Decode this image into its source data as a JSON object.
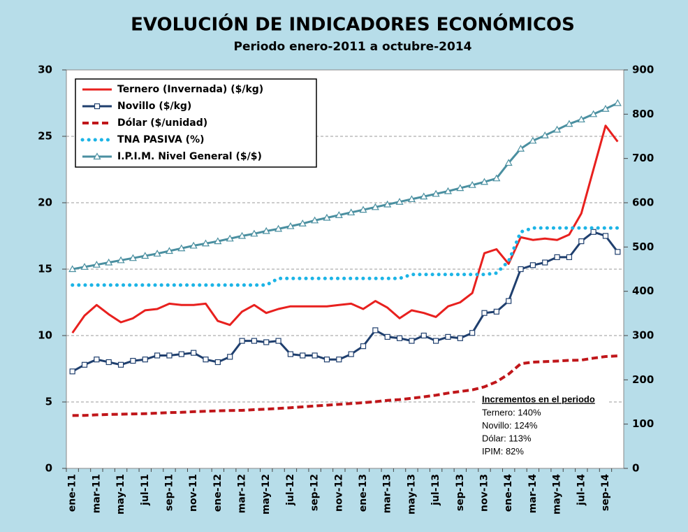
{
  "chart_data": {
    "type": "line",
    "title": "EVOLUCIÓN DE INDICADORES ECONÓMICOS",
    "subtitle": "Periodo enero-2011 a octubre-2014",
    "categories": [
      "ene-11",
      null,
      "mar-11",
      null,
      "may-11",
      null,
      "jul-11",
      null,
      "sep-11",
      null,
      "nov-11",
      null,
      "ene-12",
      null,
      "mar-12",
      null,
      "may-12",
      null,
      "jul-12",
      null,
      "sep-12",
      null,
      "nov-12",
      null,
      "ene-13",
      null,
      "mar-13",
      null,
      "may-13",
      null,
      "jul-13",
      null,
      "sep-13",
      null,
      "nov-13",
      null,
      "ene-14",
      null,
      "mar-14",
      null,
      "may-14",
      null,
      "jul-14",
      null,
      "sep-14",
      null
    ],
    "series": [
      {
        "name": "Ternero (Invernada) ($/kg)",
        "color": "#e8201e",
        "line_style": "solid",
        "marker": "none",
        "values": [
          10.2,
          11.5,
          12.3,
          11.6,
          11.0,
          11.3,
          11.9,
          12.0,
          12.4,
          12.3,
          12.3,
          12.4,
          11.1,
          10.8,
          11.8,
          12.3,
          11.7,
          12.0,
          12.2,
          12.2,
          12.2,
          12.2,
          12.3,
          12.4,
          12.0,
          12.6,
          12.1,
          11.3,
          11.9,
          11.7,
          11.4,
          12.2,
          12.5,
          13.2,
          16.2,
          16.5,
          15.4,
          17.4,
          17.2,
          17.3,
          17.2,
          17.6,
          19.2,
          22.5,
          25.8,
          24.6
        ]
      },
      {
        "name": "Novillo ($/kg)",
        "color": "#1f3f6e",
        "line_style": "solid",
        "marker": "square",
        "values": [
          7.3,
          7.8,
          8.2,
          8.0,
          7.8,
          8.1,
          8.2,
          8.5,
          8.5,
          8.6,
          8.7,
          8.2,
          8.0,
          8.4,
          9.6,
          9.6,
          9.5,
          9.6,
          8.6,
          8.5,
          8.5,
          8.2,
          8.2,
          8.6,
          9.2,
          10.4,
          9.9,
          9.8,
          9.6,
          10.0,
          9.6,
          9.9,
          9.8,
          10.2,
          11.7,
          11.8,
          12.6,
          15.0,
          15.3,
          15.5,
          15.9,
          15.9,
          17.1,
          17.8,
          17.5,
          16.3
        ]
      },
      {
        "name": "Dólar ($/unidad)",
        "color": "#c0161a",
        "line_style": "dash",
        "marker": "none",
        "values": [
          3.98,
          3.99,
          4.03,
          4.06,
          4.08,
          4.1,
          4.12,
          4.16,
          4.2,
          4.22,
          4.27,
          4.3,
          4.33,
          4.36,
          4.37,
          4.42,
          4.46,
          4.51,
          4.57,
          4.63,
          4.7,
          4.76,
          4.82,
          4.88,
          4.95,
          5.02,
          5.12,
          5.18,
          5.28,
          5.39,
          5.51,
          5.67,
          5.79,
          5.91,
          6.14,
          6.52,
          7.1,
          7.88,
          8.0,
          8.04,
          8.08,
          8.13,
          8.15,
          8.3,
          8.42,
          8.47
        ]
      },
      {
        "name": "TNA PASIVA (%)",
        "color": "#1cb4e6",
        "line_style": "dot",
        "marker": "none",
        "values": [
          13.8,
          13.8,
          13.8,
          13.8,
          13.8,
          13.8,
          13.8,
          13.8,
          13.8,
          13.8,
          13.8,
          13.8,
          13.8,
          13.8,
          13.8,
          13.8,
          13.8,
          14.3,
          14.3,
          14.3,
          14.3,
          14.3,
          14.3,
          14.3,
          14.3,
          14.3,
          14.3,
          14.3,
          14.6,
          14.6,
          14.6,
          14.6,
          14.6,
          14.6,
          14.6,
          14.7,
          15.6,
          17.8,
          18.1,
          18.1,
          18.1,
          18.1,
          18.1,
          18.1,
          18.1,
          18.1
        ]
      },
      {
        "name": "I.P.I.M. Nivel General ($/$)",
        "color": "#4a8fa0",
        "line_style": "solid",
        "marker": "triangle",
        "axis": "y2",
        "values": [
          450,
          455,
          460,
          465,
          470,
          475,
          480,
          485,
          491,
          497,
          503,
          508,
          513,
          519,
          525,
          530,
          536,
          541,
          547,
          553,
          560,
          566,
          572,
          578,
          584,
          590,
          596,
          602,
          608,
          614,
          620,
          626,
          633,
          640,
          647,
          655,
          690,
          722,
          740,
          752,
          765,
          778,
          788,
          800,
          812,
          825
        ]
      }
    ],
    "ylim": [
      0,
      30
    ],
    "yticks": [
      0,
      5,
      10,
      15,
      20,
      25,
      30
    ],
    "y2lim": [
      0,
      900
    ],
    "y2ticks": [
      0,
      100,
      200,
      300,
      400,
      500,
      600,
      700,
      800,
      900
    ],
    "grid": true,
    "legend": "upper left",
    "annotation": {
      "title": "Incrementos en el periodo",
      "lines": [
        "Ternero: 140%",
        "Novillo:  124%",
        "Dólar:  113%",
        "IPIM:  82%"
      ]
    }
  }
}
